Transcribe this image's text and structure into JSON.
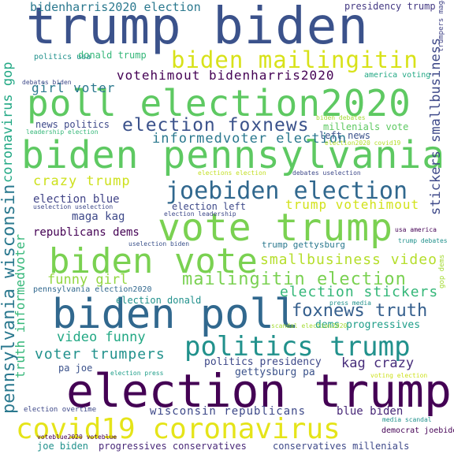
{
  "palette": {
    "background": "#ffffff",
    "dark_purple": "#440154",
    "indigo": "#3b528b",
    "teal": "#21918c",
    "green": "#5ec962",
    "yellow": "#fde725"
  },
  "words": [
    {
      "text": "trump biden",
      "color": "#3b528b"
    },
    {
      "text": "election trump",
      "color": "#440154"
    },
    {
      "text": "biden pennsylvania",
      "color": "#5ec962"
    },
    {
      "text": "poll election2020",
      "color": "#5ec962"
    },
    {
      "text": "biden poll",
      "color": "#31688e"
    },
    {
      "text": "vote trump",
      "color": "#7ad151"
    },
    {
      "text": "biden vote",
      "color": "#7ad151"
    },
    {
      "text": "covid19 coronavirus",
      "color": "#e5e419"
    },
    {
      "text": "biden mailingitin",
      "color": "#d8e219"
    },
    {
      "text": "joebiden election",
      "color": "#31688e"
    },
    {
      "text": "politics trump",
      "color": "#21918c"
    },
    {
      "text": "mailingitin election",
      "color": "#7ad151"
    },
    {
      "text": "election foxnews",
      "color": "#3b528b"
    },
    {
      "text": "foxnews truth",
      "color": "#355f8d"
    },
    {
      "text": "election stickers",
      "color": "#35b779"
    },
    {
      "text": "smallbusiness video",
      "color": "#b5de2b"
    },
    {
      "text": "informedvoter election",
      "color": "#2a788e"
    },
    {
      "text": "bidenharris2020 election",
      "color": "#2a788e"
    },
    {
      "text": "votehimout bidenharris2020",
      "color": "#440154"
    },
    {
      "text": "girl voter",
      "color": "#2a788e"
    },
    {
      "text": "crazy trump",
      "color": "#cde11d"
    },
    {
      "text": "trump votehimout",
      "color": "#d2e21b"
    },
    {
      "text": "funny girl",
      "color": "#93d741"
    },
    {
      "text": "video funny",
      "color": "#22a884"
    },
    {
      "text": "voter trumpers",
      "color": "#21918c"
    },
    {
      "text": "kag crazy",
      "color": "#472d7b"
    },
    {
      "text": "wisconsin republicans",
      "color": "#3e4989"
    },
    {
      "text": "blue biden",
      "color": "#482878"
    },
    {
      "text": "republicans dems",
      "color": "#440154"
    },
    {
      "text": "maga kag",
      "color": "#3e4989"
    },
    {
      "text": "election blue",
      "color": "#414487"
    },
    {
      "text": "politics presidency",
      "color": "#3e4989"
    },
    {
      "text": "gettysburg pa",
      "color": "#3b528b"
    },
    {
      "text": "dems progressives",
      "color": "#1f9e89"
    },
    {
      "text": "progressives conservatives",
      "color": "#482878"
    },
    {
      "text": "conservatives millenials",
      "color": "#3e4989"
    },
    {
      "text": "joe biden",
      "color": "#21918c"
    },
    {
      "text": "trump gettysburg",
      "color": "#2a788e"
    },
    {
      "text": "presidency trump",
      "color": "#443983"
    },
    {
      "text": "donald trump",
      "color": "#35b779"
    },
    {
      "text": "news politics",
      "color": "#3e4989"
    },
    {
      "text": "election left",
      "color": "#3e4989"
    },
    {
      "text": "left news",
      "color": "#3b528b"
    },
    {
      "text": "millenials vote",
      "color": "#5ec962"
    },
    {
      "text": "election donald",
      "color": "#21918c"
    },
    {
      "text": "pa joe",
      "color": "#3b528b"
    },
    {
      "text": "politics usa",
      "color": "#21918c"
    },
    {
      "text": "america voting",
      "color": "#22a884"
    },
    {
      "text": "debates biden",
      "color": "#3e4989"
    },
    {
      "text": "leadership election",
      "color": "#35b779"
    },
    {
      "text": "biden debates",
      "color": "#a5db36"
    },
    {
      "text": "election2020 covid19",
      "color": "#b5de2b"
    },
    {
      "text": "elections election",
      "color": "#c2df23"
    },
    {
      "text": "debates uselection",
      "color": "#3e4989"
    },
    {
      "text": "uselection uselection",
      "color": "#3e4989"
    },
    {
      "text": "election leadership",
      "color": "#3e4989"
    },
    {
      "text": "uselection biden",
      "color": "#3b528b"
    },
    {
      "text": "pennsylvania election2020",
      "color": "#31688e"
    },
    {
      "text": "usa america",
      "color": "#440154"
    },
    {
      "text": "trump debates",
      "color": "#21918c"
    },
    {
      "text": "press media",
      "color": "#21918c"
    },
    {
      "text": "scandal election2020",
      "color": "#a5db36"
    },
    {
      "text": "election press",
      "color": "#1f9e89"
    },
    {
      "text": "voting election",
      "color": "#cde11d"
    },
    {
      "text": "election overtime",
      "color": "#3e4989"
    },
    {
      "text": "voteblue2020 voteblue",
      "color": "#440154"
    },
    {
      "text": "media scandal",
      "color": "#21918c"
    },
    {
      "text": "democrat joebiden",
      "color": "#440154"
    },
    {
      "text": "coronavirus gop",
      "color": "#22a884"
    },
    {
      "text": "pennsylvania wisconsin",
      "color": "#2a788e"
    },
    {
      "text": "truth informedvoter",
      "color": "#35b779"
    },
    {
      "text": "stickers smallbusiness",
      "color": "#3e4989"
    },
    {
      "text": "trumpers maga",
      "color": "#414487"
    },
    {
      "text": "gop dems",
      "color": "#a5db36"
    },
    {
      "text": "dems politics",
      "color": "#482878"
    }
  ]
}
